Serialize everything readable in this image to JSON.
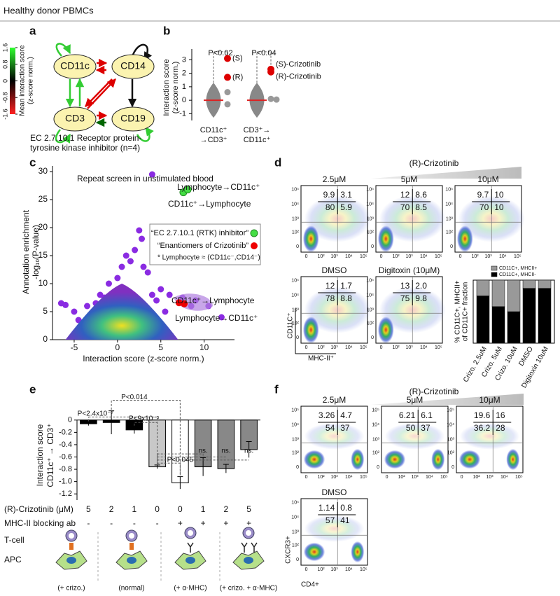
{
  "header": {
    "title": "Healthy donor PBMCs"
  },
  "panel_a": {
    "label": "a",
    "nodes": [
      "CD11c",
      "CD14",
      "CD3",
      "CD19"
    ],
    "colorbar_title": "Mean interaction score",
    "colorbar_subtitle": "(z-score norm.)",
    "colorbar_ticks": [
      -1.6,
      -0.8,
      0,
      0.8,
      1.6
    ],
    "caption": [
      "EC 2.7.10.1 Receptor protein-",
      "tyrosine kinase inhibitor (n=4)"
    ]
  },
  "panel_b": {
    "label": "b",
    "y_label": [
      "Interaction score",
      "(z-score norm.)"
    ],
    "ylim": [
      -1.5,
      3.8
    ],
    "yticks": [
      -1,
      0,
      1,
      2,
      3
    ],
    "groups": [
      {
        "label": [
          "CD11c⁺",
          "→CD3⁺"
        ],
        "p_value": "P<0.02",
        "red_points": [
          3.1,
          1.7
        ],
        "red_labels": [
          "(S)",
          "(R)"
        ],
        "grey_points": [
          0.6,
          -0.3
        ]
      },
      {
        "label": [
          "CD3⁺→",
          "CD11c⁺"
        ],
        "p_value": "P<0.04",
        "red_points": [
          2.3,
          2.1
        ],
        "red_labels": [
          "(S)-Crizotinib",
          "(R)-Crizotinib"
        ],
        "grey_points": [
          0.1,
          0.05
        ]
      }
    ]
  },
  "panel_c": {
    "label": "c",
    "title": "Repeat screen in unstimulated blood",
    "x_label": "Interaction score (z-score norm.)",
    "y_label": [
      "Annotation enrichment",
      "-log₁₀(P-value)"
    ],
    "xlim": [
      -7.5,
      13.5
    ],
    "ylim": [
      0,
      31
    ],
    "xticks": [
      -5,
      0,
      5,
      10
    ],
    "yticks": [
      0,
      5,
      10,
      15,
      20,
      25,
      30
    ],
    "points": {
      "x": [
        -6.5,
        -6,
        -5,
        -4.5,
        -3.5,
        -3,
        -2.5,
        -2,
        -1.5,
        -1,
        0,
        0.5,
        1,
        1.5,
        2,
        2.5,
        2.8,
        3,
        3.5,
        4,
        4,
        4.5,
        5,
        5.5,
        6,
        7.5,
        8.5,
        9,
        10.5,
        12
      ],
      "y": [
        6.5,
        6.2,
        5,
        3.5,
        6,
        4,
        6.5,
        8,
        7.5,
        10,
        11,
        13,
        15,
        14,
        16,
        19.5,
        18,
        13,
        12,
        29.5,
        8,
        7,
        9,
        5,
        8,
        7.5,
        6,
        7,
        6,
        4
      ]
    },
    "green_points": {
      "x": [
        7.6,
        8.1
      ],
      "y": [
        26.3,
        26.8
      ]
    },
    "red_points": {
      "x": [
        7.1,
        7.7
      ],
      "y": [
        6.6,
        6.4
      ]
    },
    "annotations": [
      "Lymphocyte→CD11c⁺",
      "CD11c⁺→Lymphocyte",
      "CD11c⁺→Lymphocyte",
      "Lymphocyte→CD11c⁺"
    ],
    "legend": [
      "“EC 2.7.10.1 (RTK) inhibitor”",
      "“Enantiomers of Crizotinib”"
    ],
    "footnote": "* Lymphocyte ≈ (CD11c⁻,CD14⁻)"
  },
  "panel_d": {
    "label": "d",
    "title": "(R)-Crizotinib",
    "plots": [
      {
        "label": "2.5μM",
        "quadrants": [
          "9.9",
          "3.1",
          "80",
          "5.9"
        ]
      },
      {
        "label": "5μM",
        "quadrants": [
          "12",
          "8.6",
          "70",
          "8.5"
        ]
      },
      {
        "label": "10μM",
        "quadrants": [
          "9.7",
          "10",
          "70",
          "10"
        ]
      },
      {
        "label": "DMSO",
        "quadrants": [
          "12",
          "1.7",
          "78",
          "8.8"
        ]
      },
      {
        "label": "Digitoxin (10μM)",
        "quadrants": [
          "13",
          "2.0",
          "75",
          "9.8"
        ]
      }
    ],
    "x_axis": "MHC-II⁺",
    "y_axis": "CD11C⁺",
    "axis_ticks": [
      "0",
      "10²",
      "10³",
      "10⁴",
      "10⁵"
    ],
    "bar_chart": {
      "type": "bar",
      "categories": [
        "Crizo. 2.5uM",
        "Crizo. 5uM",
        "Crizo. 10uM",
        "DMSO",
        "Digitoxin 10uM"
      ],
      "series": [
        {
          "name": "CD11C+, MHCII-",
          "color": "#000000",
          "values": [
            75,
            58,
            50,
            87,
            87
          ]
        },
        {
          "name": "CD11C+, MHCII+",
          "color": "#999999",
          "values": [
            25,
            42,
            50,
            13,
            13
          ]
        }
      ],
      "ylim": [
        0,
        100
      ],
      "y_label": [
        "% CD11C+, MHCII+",
        "of CD11C+ fraction"
      ]
    }
  },
  "panel_e": {
    "label": "e",
    "type": "bar",
    "y_label": [
      "Interaction score",
      "CD11c⁺ → CD3⁺"
    ],
    "ylim": [
      -1.3,
      0.1
    ],
    "yticks": [
      0,
      -0.2,
      -0.4,
      -0.6,
      -0.8,
      {
        "value": -1,
        "label": "-1.0"
      },
      -1.2
    ],
    "values": [
      -0.06,
      -0.04,
      -0.16,
      -0.76,
      -1.02,
      -0.76,
      -0.79,
      -0.48
    ],
    "errors": [
      0.03,
      0.19,
      0.06,
      0.03,
      0.1,
      0.15,
      0.07,
      0.13
    ],
    "colors": [
      "#000000",
      "#000000",
      "#000000",
      "#c8c8c8",
      "#ffffff",
      "#888888",
      "#888888",
      "#888888"
    ],
    "row_labels": [
      "(R)-Crizotinib (μM)",
      "MHC-II blocking ab"
    ],
    "crizotinib": [
      "5",
      "2",
      "1",
      "0",
      "0",
      "1",
      "2",
      "5"
    ],
    "blocking": [
      "-",
      "-",
      "-",
      "-",
      "+",
      "+",
      "+",
      "+"
    ],
    "p_values": [
      "P<2.4x10⁻⁷",
      "P<0.014",
      "P<9x10⁻⁵",
      "P<0.045",
      "ns.",
      "ns.",
      "ns."
    ],
    "cartoon": {
      "cell_labels": [
        "T-cell",
        "APC"
      ],
      "captions": [
        "(+ crizo.)",
        "(normal)",
        "(+ α-MHC)",
        "(+ crizo. + α-MHC)"
      ]
    }
  },
  "panel_f": {
    "label": "f",
    "title": "(R)-Crizotinib",
    "plots": [
      {
        "label": "2.5μM",
        "quadrants": [
          "3.26",
          "4.7",
          "54",
          "37"
        ]
      },
      {
        "label": "5μM",
        "quadrants": [
          "6.21",
          "6.1",
          "50",
          "37"
        ]
      },
      {
        "label": "10μM",
        "quadrants": [
          "19.6",
          "16",
          "36.2",
          "28"
        ]
      },
      {
        "label": "DMSO",
        "quadrants": [
          "1.14",
          "0.8",
          "57",
          "41"
        ]
      }
    ],
    "x_axis": "CD4+",
    "y_axis": "CXCR3+",
    "axis_ticks": [
      "0",
      "10²",
      "10³",
      "10⁴",
      "10⁵"
    ]
  }
}
